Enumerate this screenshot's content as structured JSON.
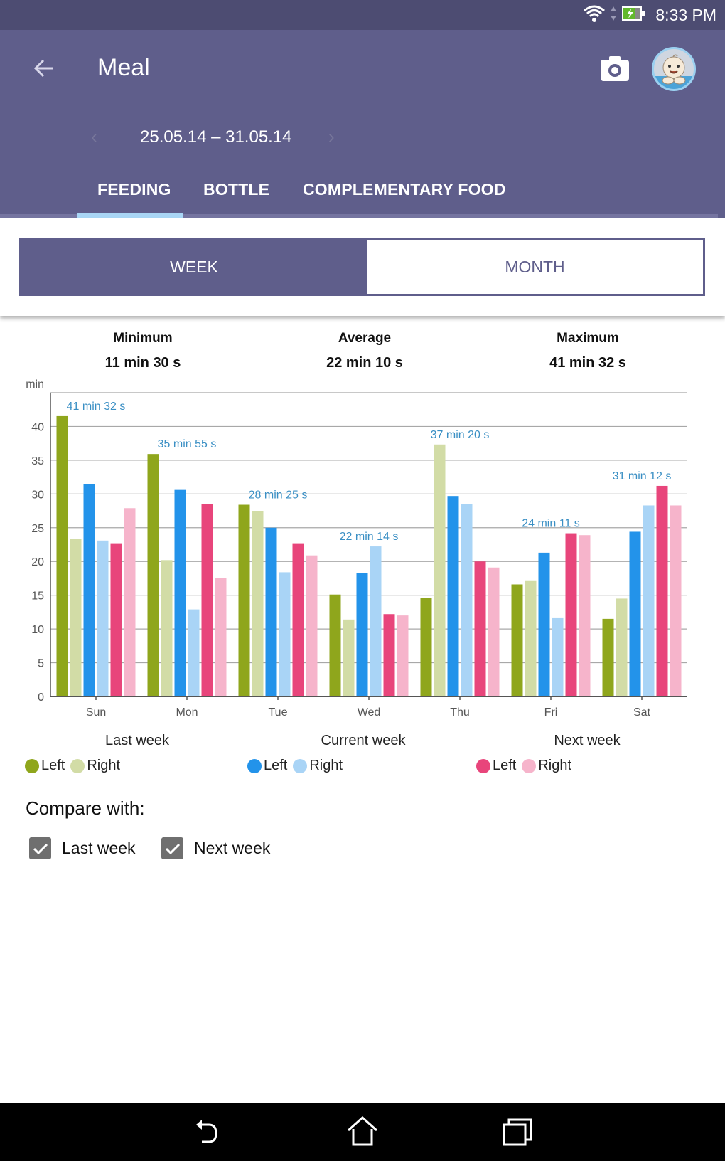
{
  "status_bar": {
    "time": "8:33 PM",
    "icons": [
      "wifi-icon",
      "data-arrows-icon",
      "battery-charging-icon"
    ]
  },
  "app_bar": {
    "title": "Meal",
    "back_icon": "arrow-left-icon",
    "camera_icon": "camera-icon",
    "avatar_icon": "baby-avatar-icon"
  },
  "date_range": {
    "prev_icon": "chevron-left-icon",
    "label": "25.05.14 – 31.05.14",
    "next_icon": "chevron-right-icon",
    "prev_glyph": "‹",
    "next_glyph": "›"
  },
  "tabs": [
    {
      "label": "FEEDING",
      "selected": true
    },
    {
      "label": "BOTTLE",
      "selected": false
    },
    {
      "label": "COMPLEMENTARY FOOD",
      "selected": false
    }
  ],
  "period_toggle": {
    "week": "WEEK",
    "month": "MONTH",
    "selected": "WEEK"
  },
  "stats": [
    {
      "label": "Minimum",
      "value": "11 min 30 s"
    },
    {
      "label": "Average",
      "value": "22 min 10 s"
    },
    {
      "label": "Maximum",
      "value": "41 min 32 s"
    }
  ],
  "legend": {
    "groups": [
      {
        "title": "Last week",
        "items": [
          {
            "label": "Left",
            "color": "#8fa61c"
          },
          {
            "label": "Right",
            "color": "#d2dca6"
          }
        ]
      },
      {
        "title": "Current week",
        "items": [
          {
            "label": "Left",
            "color": "#2393ea"
          },
          {
            "label": "Right",
            "color": "#a9d4f6"
          }
        ]
      },
      {
        "title": "Next week",
        "items": [
          {
            "label": "Left",
            "color": "#e8457b"
          },
          {
            "label": "Right",
            "color": "#f6b4cb"
          }
        ]
      }
    ]
  },
  "compare": {
    "label": "Compare with:",
    "options": [
      {
        "label": "Last week",
        "checked": true
      },
      {
        "label": "Next week",
        "checked": true
      }
    ]
  },
  "nav_bar": {
    "icons": [
      "back-nav-icon",
      "home-icon",
      "recents-icon"
    ]
  },
  "chart_data": {
    "type": "bar",
    "title": "",
    "xlabel": "",
    "ylabel": "min",
    "ylim": [
      0,
      45
    ],
    "yticks": [
      0,
      5,
      10,
      15,
      20,
      25,
      30,
      35,
      40
    ],
    "grid": true,
    "categories": [
      "Sun",
      "Mon",
      "Tue",
      "Wed",
      "Thu",
      "Fri",
      "Sat"
    ],
    "series": [
      {
        "name": "Last week Left",
        "color": "#8fa61c",
        "values": [
          41.53,
          35.92,
          28.4,
          15.1,
          14.6,
          16.6,
          11.5
        ]
      },
      {
        "name": "Last week Right",
        "color": "#d2dca6",
        "values": [
          23.3,
          20.2,
          27.4,
          11.4,
          37.33,
          17.1,
          14.5
        ]
      },
      {
        "name": "Current week Left",
        "color": "#2393ea",
        "values": [
          31.5,
          30.6,
          25.0,
          18.3,
          29.7,
          21.3,
          24.4
        ]
      },
      {
        "name": "Current week Right",
        "color": "#a9d4f6",
        "values": [
          23.1,
          12.9,
          18.4,
          22.23,
          28.5,
          11.6,
          28.3
        ]
      },
      {
        "name": "Next week Left",
        "color": "#e8457b",
        "values": [
          22.7,
          28.5,
          22.7,
          12.2,
          20.0,
          24.18,
          31.2
        ]
      },
      {
        "name": "Next week Right",
        "color": "#f6b4cb",
        "values": [
          27.9,
          17.6,
          20.9,
          12.0,
          19.1,
          23.9,
          28.3
        ]
      }
    ],
    "annotations": [
      "41 min 32 s",
      "35 min 55 s",
      "28 min 25 s",
      "22 min 14 s",
      "37 min 20 s",
      "24 min 11 s",
      "31 min 12 s"
    ],
    "annotation_color": "#3a8fc4"
  }
}
